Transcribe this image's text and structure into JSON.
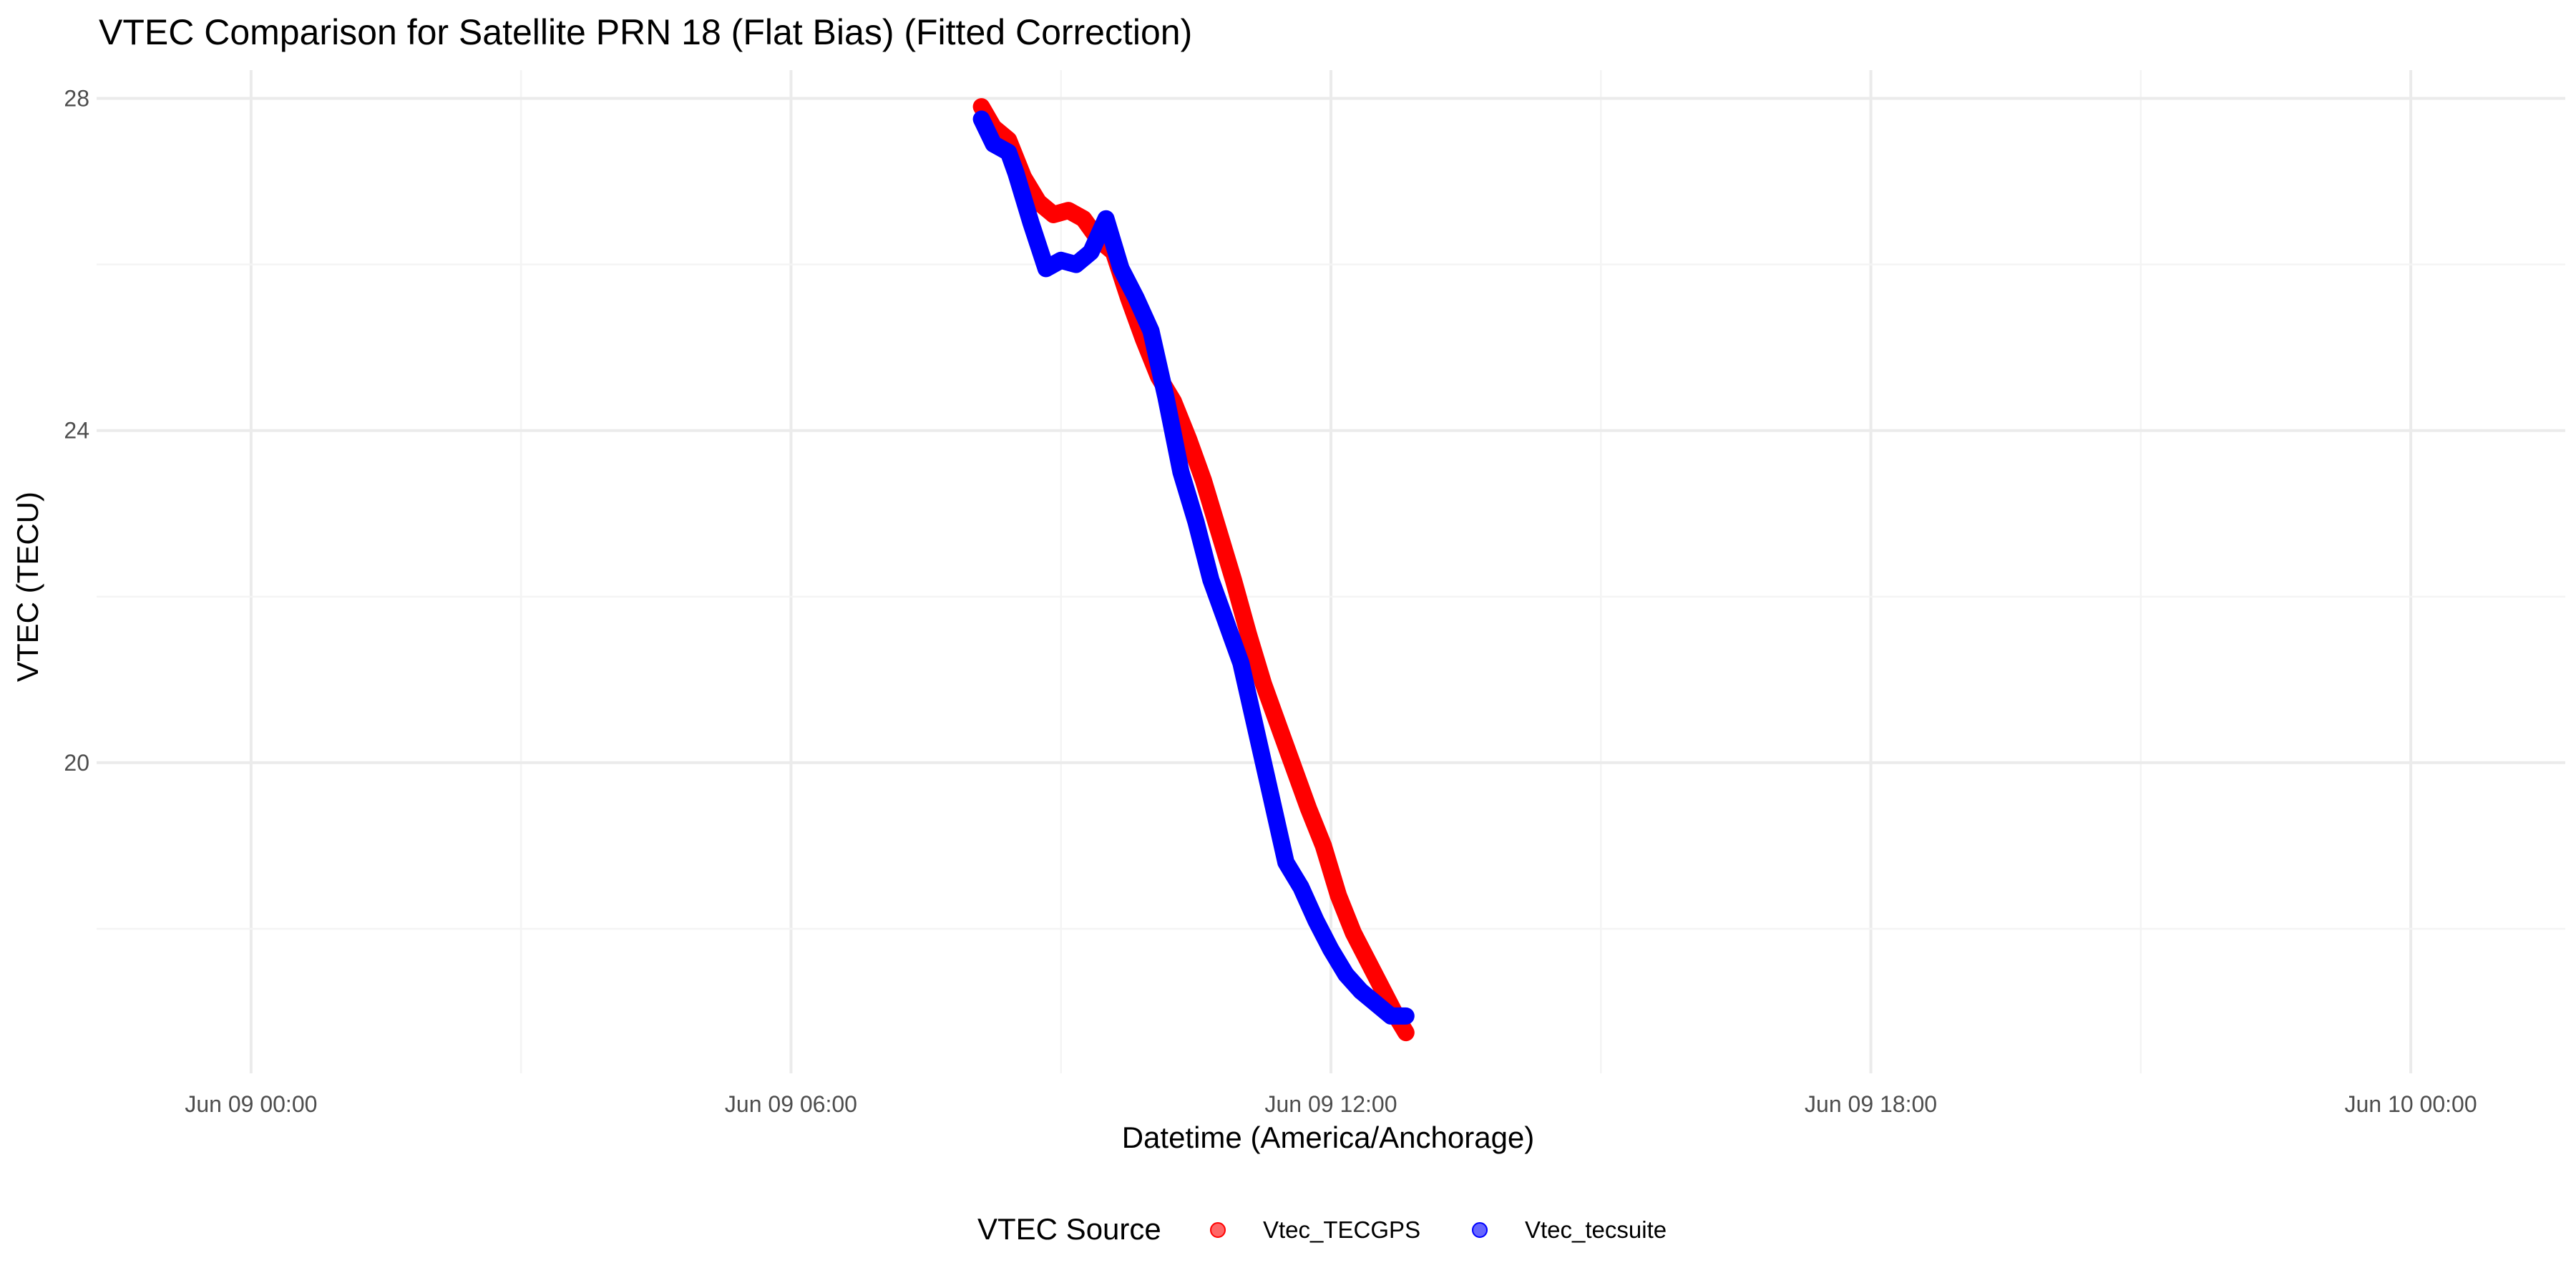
{
  "chart_data": {
    "type": "line",
    "title": "VTEC Comparison for Satellite PRN 18 (Flat Bias)   (Fitted Correction)",
    "xlabel": "Datetime (America/Anchorage)",
    "ylabel": "VTEC (TECU)",
    "x_axis_type": "datetime",
    "xlim": [
      "2024-06-08 22:17",
      "2024-06-10 01:43"
    ],
    "ylim": [
      16.26,
      28.34
    ],
    "x_ticks": [
      {
        "value": "2024-06-09 00:00",
        "label": "Jun 09 00:00"
      },
      {
        "value": "2024-06-09 06:00",
        "label": "Jun 09 06:00"
      },
      {
        "value": "2024-06-09 12:00",
        "label": "Jun 09 12:00"
      },
      {
        "value": "2024-06-09 18:00",
        "label": "Jun 09 18:00"
      },
      {
        "value": "2024-06-10 00:00",
        "label": "Jun 10 00:00"
      }
    ],
    "y_ticks": [
      20,
      24,
      28
    ],
    "grid": true,
    "legend": {
      "title": "VTEC Source",
      "position": "bottom"
    },
    "series": [
      {
        "name": "Vtec_TECGPS",
        "color": "#ff0000",
        "points": [
          [
            "2024-06-09 08:07",
            27.9
          ],
          [
            "2024-06-09 08:15",
            27.65
          ],
          [
            "2024-06-09 08:25",
            27.5
          ],
          [
            "2024-06-09 08:35",
            27.05
          ],
          [
            "2024-06-09 08:45",
            26.75
          ],
          [
            "2024-06-09 08:55",
            26.6
          ],
          [
            "2024-06-09 09:05",
            26.65
          ],
          [
            "2024-06-09 09:15",
            26.55
          ],
          [
            "2024-06-09 09:25",
            26.3
          ],
          [
            "2024-06-09 09:35",
            26.15
          ],
          [
            "2024-06-09 09:45",
            25.6
          ],
          [
            "2024-06-09 09:55",
            25.1
          ],
          [
            "2024-06-09 10:05",
            24.65
          ],
          [
            "2024-06-09 10:15",
            24.35
          ],
          [
            "2024-06-09 10:25",
            23.9
          ],
          [
            "2024-06-09 10:35",
            23.4
          ],
          [
            "2024-06-09 10:45",
            22.8
          ],
          [
            "2024-06-09 10:55",
            22.2
          ],
          [
            "2024-06-09 11:05",
            21.55
          ],
          [
            "2024-06-09 11:15",
            20.95
          ],
          [
            "2024-06-09 11:25",
            20.45
          ],
          [
            "2024-06-09 11:35",
            19.95
          ],
          [
            "2024-06-09 11:45",
            19.45
          ],
          [
            "2024-06-09 11:55",
            19.0
          ],
          [
            "2024-06-09 12:05",
            18.4
          ],
          [
            "2024-06-09 12:15",
            17.95
          ],
          [
            "2024-06-09 12:25",
            17.6
          ],
          [
            "2024-06-09 12:35",
            17.25
          ],
          [
            "2024-06-09 12:45",
            16.9
          ],
          [
            "2024-06-09 12:50",
            16.75
          ]
        ]
      },
      {
        "name": "Vtec_tecsuite",
        "color": "#0000ff",
        "points": [
          [
            "2024-06-09 08:07",
            27.75
          ],
          [
            "2024-06-09 08:15",
            27.45
          ],
          [
            "2024-06-09 08:25",
            27.35
          ],
          [
            "2024-06-09 08:30",
            27.1
          ],
          [
            "2024-06-09 08:40",
            26.5
          ],
          [
            "2024-06-09 08:50",
            25.95
          ],
          [
            "2024-06-09 09:00",
            26.05
          ],
          [
            "2024-06-09 09:10",
            26.0
          ],
          [
            "2024-06-09 09:20",
            26.15
          ],
          [
            "2024-06-09 09:30",
            26.55
          ],
          [
            "2024-06-09 09:40",
            25.95
          ],
          [
            "2024-06-09 09:50",
            25.6
          ],
          [
            "2024-06-09 10:00",
            25.2
          ],
          [
            "2024-06-09 10:10",
            24.4
          ],
          [
            "2024-06-09 10:20",
            23.5
          ],
          [
            "2024-06-09 10:30",
            22.9
          ],
          [
            "2024-06-09 10:40",
            22.2
          ],
          [
            "2024-06-09 10:50",
            21.7
          ],
          [
            "2024-06-09 11:00",
            21.2
          ],
          [
            "2024-06-09 11:10",
            20.4
          ],
          [
            "2024-06-09 11:20",
            19.6
          ],
          [
            "2024-06-09 11:30",
            18.8
          ],
          [
            "2024-06-09 11:40",
            18.5
          ],
          [
            "2024-06-09 11:50",
            18.1
          ],
          [
            "2024-06-09 12:00",
            17.75
          ],
          [
            "2024-06-09 12:10",
            17.45
          ],
          [
            "2024-06-09 12:20",
            17.25
          ],
          [
            "2024-06-09 12:30",
            17.1
          ],
          [
            "2024-06-09 12:40",
            16.95
          ],
          [
            "2024-06-09 12:50",
            16.95
          ]
        ]
      }
    ]
  }
}
